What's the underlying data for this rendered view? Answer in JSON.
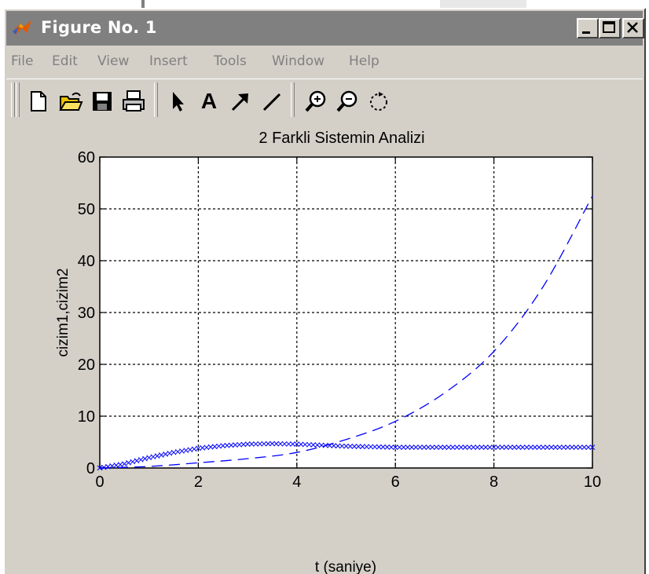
{
  "window": {
    "title": "Figure No. 1",
    "icon": "matlab-logo-icon"
  },
  "menu": [
    "File",
    "Edit",
    "View",
    "Insert",
    "Tools",
    "Window",
    "Help"
  ],
  "toolbar": {
    "buttons": [
      "new-file-icon",
      "open-folder-icon",
      "save-icon",
      "print-icon",
      "pointer-arrow-icon",
      "text-A-icon",
      "arrow-icon",
      "line-icon",
      "zoom-in-icon",
      "zoom-out-icon",
      "rotate-icon"
    ],
    "text_tool_label": "A"
  },
  "colors": {
    "series": "#0000ff",
    "background": "#d4d0c8",
    "axes": "#000000"
  },
  "chart_data": {
    "type": "line",
    "title": "2 Farkli Sistemin Analizi",
    "xlabel": "t (saniye)",
    "ylabel": "cizim1,cizim2",
    "xlim": [
      0,
      10
    ],
    "ylim": [
      0,
      60
    ],
    "xticks": [
      0,
      2,
      4,
      6,
      8,
      10
    ],
    "yticks": [
      0,
      10,
      20,
      30,
      40,
      50,
      60
    ],
    "grid": true,
    "series": [
      {
        "style": "x-markers",
        "x": [
          0,
          0.5,
          1,
          1.5,
          2,
          2.5,
          3,
          3.5,
          4,
          4.5,
          5,
          5.5,
          6,
          6.5,
          7,
          7.5,
          8,
          8.5,
          9,
          9.5,
          10
        ],
        "y": [
          0,
          0.8,
          2.0,
          3.0,
          3.8,
          4.3,
          4.6,
          4.7,
          4.6,
          4.4,
          4.2,
          4.1,
          4.0,
          4.0,
          4.0,
          4.0,
          4.0,
          4.0,
          4.0,
          4.0,
          4.0
        ]
      },
      {
        "style": "dashed",
        "x": [
          0,
          1,
          2,
          3,
          4,
          5,
          6,
          7,
          8,
          9,
          10
        ],
        "y": [
          0,
          0.3,
          1.0,
          1.8,
          3.0,
          5.5,
          9.0,
          14.5,
          22.5,
          35.0,
          52.5
        ]
      }
    ]
  }
}
